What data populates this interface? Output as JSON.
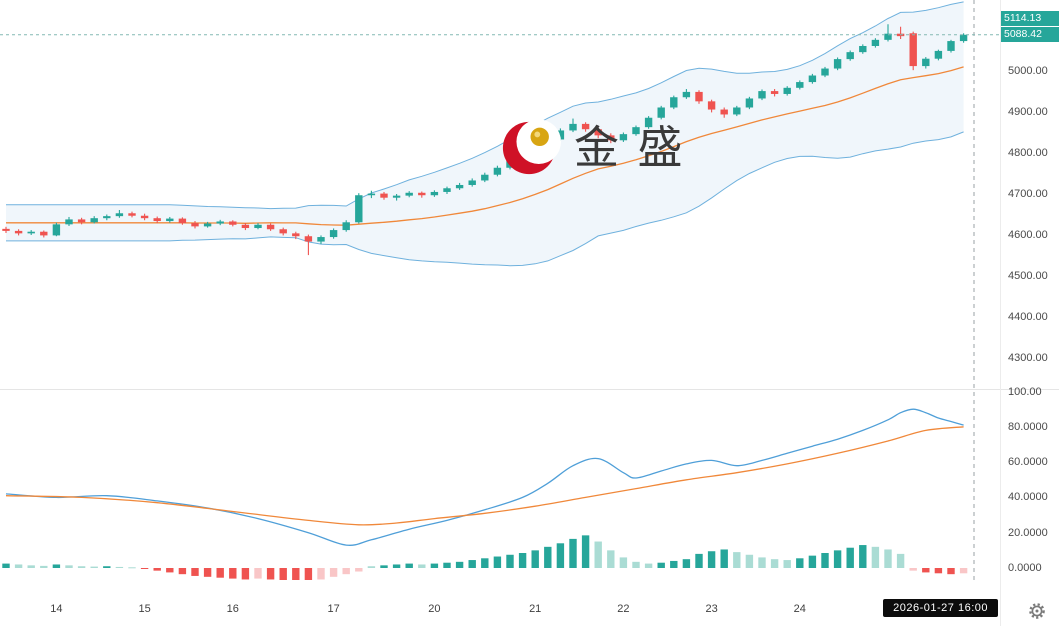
{
  "watermark": {
    "text": "金 盛"
  },
  "price_axis": {
    "badges": [
      {
        "name": "high",
        "text": "5114.13"
      },
      {
        "name": "last",
        "text": "5088.42"
      }
    ],
    "main_labels": [
      "5000.00",
      "4900.00",
      "4800.00",
      "4700.00",
      "4600.00",
      "4500.00",
      "4400.00",
      "4300.00"
    ],
    "sub_labels": [
      "100.00",
      "80.0000",
      "60.0000",
      "40.0000",
      "20.0000",
      "0.0000"
    ]
  },
  "time_axis": {
    "timestamp": "2026-01-27 16:00",
    "ticks": [
      {
        "label": "14",
        "index": 4
      },
      {
        "label": "15",
        "index": 11
      },
      {
        "label": "16",
        "index": 18
      },
      {
        "label": "17",
        "index": 26
      },
      {
        "label": "20",
        "index": 34
      },
      {
        "label": "21",
        "index": 42
      },
      {
        "label": "22",
        "index": 49
      },
      {
        "label": "23",
        "index": 56
      },
      {
        "label": "24",
        "index": 63
      }
    ]
  },
  "theme": {
    "up": "#26a69a",
    "down": "#ef5350",
    "up_faded": "#aadcd4",
    "down_faded": "#f9c6c7",
    "band_line": "#6fb1dd",
    "band_fill": "rgba(110,170,220,0.10)",
    "mid_line": "#f0883a",
    "fast_line": "#4f9fd8",
    "slow_line": "#f0883a",
    "badge_bg": "#26a69a",
    "crosshair": "#9aa0a6",
    "last_price_line": "#84b9b3",
    "separator": "#e5e5e5"
  },
  "chart_data": [
    {
      "type": "candlestick",
      "panel": "main",
      "overlay": "bollinger_bands",
      "bollinger": {
        "window": 20,
        "mult": 2.6
      },
      "ylim": [
        4280,
        5165
      ],
      "y_tick_labels": [
        5000,
        4900,
        4800,
        4700,
        4600,
        4500,
        4400,
        4300
      ],
      "last_price": 5088.4,
      "high_marker": 5114.13,
      "candles": [
        [
          4615,
          4620,
          4605,
          4610
        ],
        [
          4610,
          4614,
          4599,
          4604
        ],
        [
          4604,
          4612,
          4600,
          4608
        ],
        [
          4608,
          4611,
          4594,
          4599
        ],
        [
          4599,
          4630,
          4597,
          4626
        ],
        [
          4626,
          4644,
          4622,
          4638
        ],
        [
          4638,
          4642,
          4626,
          4631
        ],
        [
          4631,
          4646,
          4628,
          4641
        ],
        [
          4641,
          4650,
          4636,
          4646
        ],
        [
          4646,
          4661,
          4642,
          4653
        ],
        [
          4653,
          4657,
          4643,
          4647
        ],
        [
          4647,
          4652,
          4636,
          4641
        ],
        [
          4641,
          4645,
          4629,
          4634
        ],
        [
          4634,
          4644,
          4630,
          4640
        ],
        [
          4640,
          4643,
          4625,
          4629
        ],
        [
          4629,
          4634,
          4616,
          4621
        ],
        [
          4621,
          4632,
          4618,
          4628
        ],
        [
          4628,
          4637,
          4624,
          4633
        ],
        [
          4633,
          4636,
          4621,
          4625
        ],
        [
          4625,
          4629,
          4612,
          4617
        ],
        [
          4617,
          4629,
          4614,
          4625
        ],
        [
          4625,
          4628,
          4610,
          4614
        ],
        [
          4614,
          4618,
          4599,
          4604
        ],
        [
          4604,
          4608,
          4590,
          4597
        ],
        [
          4597,
          4601,
          4551,
          4584
        ],
        [
          4584,
          4599,
          4578,
          4595
        ],
        [
          4595,
          4616,
          4591,
          4612
        ],
        [
          4612,
          4636,
          4608,
          4631
        ],
        [
          4631,
          4702,
          4628,
          4697
        ],
        [
          4697,
          4708,
          4690,
          4701
        ],
        [
          4701,
          4705,
          4686,
          4691
        ],
        [
          4691,
          4700,
          4684,
          4696
        ],
        [
          4696,
          4707,
          4692,
          4703
        ],
        [
          4703,
          4706,
          4691,
          4697
        ],
        [
          4697,
          4709,
          4693,
          4705
        ],
        [
          4705,
          4718,
          4700,
          4714
        ],
        [
          4714,
          4727,
          4710,
          4722
        ],
        [
          4722,
          4738,
          4718,
          4733
        ],
        [
          4733,
          4752,
          4729,
          4747
        ],
        [
          4747,
          4769,
          4743,
          4764
        ],
        [
          4764,
          4785,
          4760,
          4780
        ],
        [
          4780,
          4802,
          4776,
          4797
        ],
        [
          4797,
          4820,
          4793,
          4815
        ],
        [
          4815,
          4838,
          4811,
          4833
        ],
        [
          4833,
          4860,
          4829,
          4855
        ],
        [
          4855,
          4884,
          4851,
          4871
        ],
        [
          4871,
          4875,
          4852,
          4858
        ],
        [
          4858,
          4862,
          4836,
          4843
        ],
        [
          4843,
          4848,
          4824,
          4831
        ],
        [
          4831,
          4850,
          4827,
          4846
        ],
        [
          4846,
          4867,
          4842,
          4863
        ],
        [
          4863,
          4890,
          4859,
          4886
        ],
        [
          4886,
          4915,
          4882,
          4911
        ],
        [
          4911,
          4940,
          4907,
          4936
        ],
        [
          4936,
          4956,
          4932,
          4949
        ],
        [
          4949,
          4953,
          4920,
          4926
        ],
        [
          4926,
          4930,
          4899,
          4906
        ],
        [
          4906,
          4911,
          4886,
          4894
        ],
        [
          4894,
          4915,
          4890,
          4911
        ],
        [
          4911,
          4937,
          4907,
          4933
        ],
        [
          4933,
          4955,
          4929,
          4951
        ],
        [
          4951,
          4956,
          4938,
          4944
        ],
        [
          4944,
          4963,
          4940,
          4959
        ],
        [
          4959,
          4977,
          4955,
          4973
        ],
        [
          4973,
          4993,
          4969,
          4989
        ],
        [
          4989,
          5010,
          4985,
          5006
        ],
        [
          5006,
          5033,
          5002,
          5029
        ],
        [
          5029,
          5050,
          5025,
          5046
        ],
        [
          5046,
          5065,
          5042,
          5061
        ],
        [
          5061,
          5080,
          5057,
          5076
        ],
        [
          5076,
          5114,
          5072,
          5091
        ],
        [
          5091,
          5108,
          5078,
          5085
        ],
        [
          5092,
          5096,
          5002,
          5012
        ],
        [
          5012,
          5034,
          5006,
          5030
        ],
        [
          5030,
          5052,
          5026,
          5049
        ],
        [
          5049,
          5076,
          5045,
          5073
        ],
        [
          5073,
          5092,
          5069,
          5088.4
        ]
      ]
    },
    {
      "type": "line+histogram",
      "panel": "indicator",
      "ylim": [
        -12,
        100
      ],
      "y_tick_labels": [
        100,
        80,
        60,
        40,
        20,
        0
      ],
      "lines": [
        {
          "name": "fast",
          "color_key": "fast_line",
          "points": [
            [
              0,
              42
            ],
            [
              4,
              40
            ],
            [
              8,
              41
            ],
            [
              12,
              38
            ],
            [
              16,
              34
            ],
            [
              20,
              28
            ],
            [
              24,
              20
            ],
            [
              27,
              13
            ],
            [
              29,
              16
            ],
            [
              32,
              22
            ],
            [
              35,
              27
            ],
            [
              38,
              33
            ],
            [
              41,
              40
            ],
            [
              43,
              48
            ],
            [
              45,
              58
            ],
            [
              47,
              62
            ],
            [
              49,
              54
            ],
            [
              50,
              51
            ],
            [
              52,
              55
            ],
            [
              54,
              59
            ],
            [
              56,
              61
            ],
            [
              58,
              58
            ],
            [
              60,
              61
            ],
            [
              62,
              65
            ],
            [
              64,
              69
            ],
            [
              66,
              73
            ],
            [
              68,
              78
            ],
            [
              70,
              84
            ],
            [
              71,
              88
            ],
            [
              72,
              90
            ],
            [
              73,
              88
            ],
            [
              74,
              85
            ],
            [
              75,
              83
            ],
            [
              76,
              81
            ]
          ]
        },
        {
          "name": "slow",
          "color_key": "slow_line",
          "points": [
            [
              0,
              41
            ],
            [
              6,
              40
            ],
            [
              12,
              37
            ],
            [
              18,
              32
            ],
            [
              24,
              27
            ],
            [
              28,
              24.5
            ],
            [
              31,
              25.5
            ],
            [
              34,
              28
            ],
            [
              38,
              31
            ],
            [
              42,
              35
            ],
            [
              46,
              40
            ],
            [
              50,
              45
            ],
            [
              54,
              50
            ],
            [
              58,
              54
            ],
            [
              62,
              59
            ],
            [
              66,
              65
            ],
            [
              70,
              72
            ],
            [
              73,
              78
            ],
            [
              76,
              80
            ]
          ]
        }
      ],
      "histogram": [
        2.5,
        2,
        1.5,
        1.2,
        2,
        1.5,
        1,
        0.8,
        1,
        0.6,
        0.4,
        -0.5,
        -1.5,
        -2.5,
        -3.5,
        -4.5,
        -5,
        -5.5,
        -6,
        -6.5,
        -6,
        -6.5,
        -7,
        -7.5,
        -8,
        -6.5,
        -5,
        -3.5,
        -2,
        1,
        1.5,
        2,
        2.5,
        2,
        2.5,
        3,
        3.5,
        4.5,
        5.5,
        6.5,
        7.5,
        8.5,
        10,
        12,
        14,
        16.5,
        18.5,
        15,
        10,
        6,
        3.5,
        2.5,
        3,
        4,
        5,
        8,
        9.5,
        10.5,
        9,
        7.5,
        6,
        5,
        4.5,
        5.5,
        7,
        8.5,
        10,
        11.5,
        13,
        12,
        10.5,
        8,
        -1.5,
        -2.5,
        -3,
        -3.5,
        -3
      ]
    }
  ]
}
